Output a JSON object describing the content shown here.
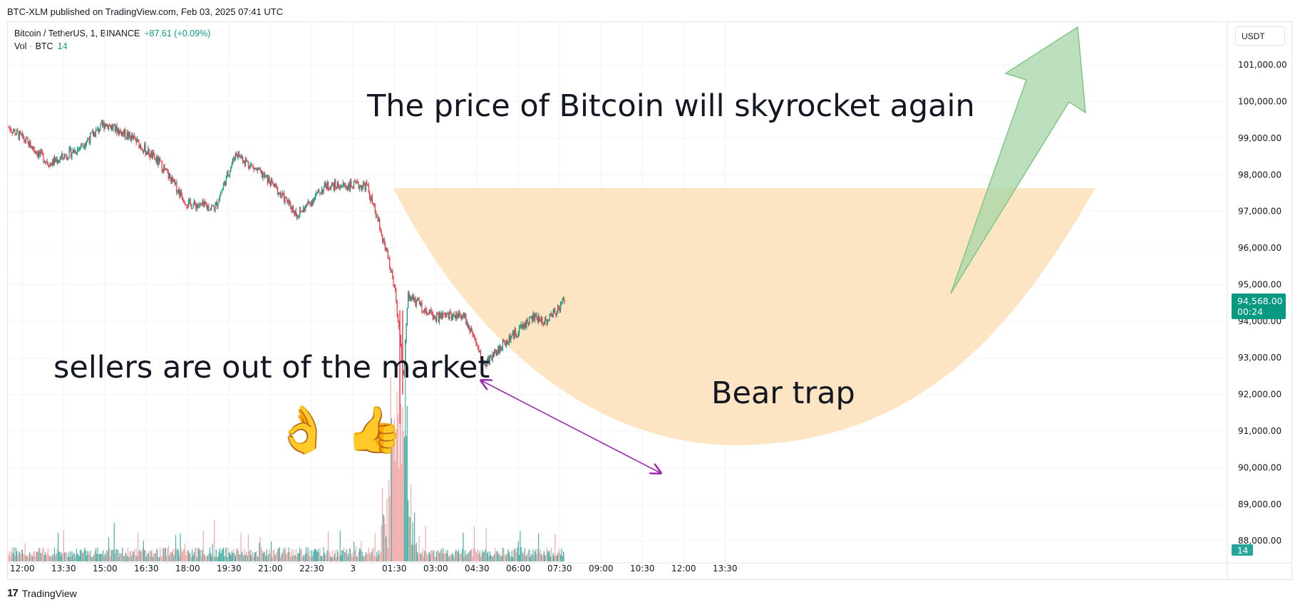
{
  "header": {
    "published": "BTC-XLM published on TradingView.com, Feb 03, 2025 07:41 UTC"
  },
  "legend": {
    "symbol": "Bitcoin / TetherUS, 1, BINANCE",
    "change": "+87.61 (+0.09%)",
    "vol_label": "Vol",
    "vol_currency": "BTC",
    "vol_value": "14"
  },
  "currency": "USDT",
  "footer": {
    "brand": "TradingView"
  },
  "colors": {
    "up": "#089981",
    "down": "#f23645",
    "bowl": "#fde0b8",
    "arrow_fill": "#a5d6a7",
    "double_arrow": "#9c27b0",
    "price_badge": "#089981"
  },
  "chart_data": {
    "type": "candlestick",
    "y_axis": {
      "ticks": [
        "101,000.00",
        "100,000.00",
        "99,000.00",
        "98,000.00",
        "97,000.00",
        "96,000.00",
        "95,000.00",
        "94,000.00",
        "93,000.00",
        "92,000.00",
        "91,000.00",
        "90,000.00",
        "89,000.00",
        "88,000.00"
      ],
      "range": [
        87400,
        101800
      ]
    },
    "x_axis": {
      "ticks": [
        "12:00",
        "13:30",
        "15:00",
        "16:30",
        "18:00",
        "19:30",
        "21:00",
        "22:30",
        "3",
        "01:30",
        "03:00",
        "04:30",
        "06:00",
        "07:30",
        "09:00",
        "10:30",
        "12:00",
        "13:30"
      ]
    },
    "price_series_keypoints": [
      {
        "t": "11:30",
        "price": 99300
      },
      {
        "t": "12:00",
        "price": 99000
      },
      {
        "t": "13:00",
        "price": 98300
      },
      {
        "t": "14:00",
        "price": 98700
      },
      {
        "t": "15:00",
        "price": 99400
      },
      {
        "t": "16:00",
        "price": 99000
      },
      {
        "t": "17:00",
        "price": 98300
      },
      {
        "t": "18:00",
        "price": 97200
      },
      {
        "t": "19:00",
        "price": 97100
      },
      {
        "t": "19:45",
        "price": 98600
      },
      {
        "t": "21:00",
        "price": 97800
      },
      {
        "t": "22:00",
        "price": 96900
      },
      {
        "t": "23:00",
        "price": 97700
      },
      {
        "t": "00:30",
        "price": 97700
      },
      {
        "t": "01:00",
        "price": 96500
      },
      {
        "t": "01:30",
        "price": 95000
      },
      {
        "t": "01:50",
        "price": 92500
      },
      {
        "t": "02:00",
        "price": 94700
      },
      {
        "t": "03:00",
        "price": 94100
      },
      {
        "t": "04:00",
        "price": 94200
      },
      {
        "t": "04:45",
        "price": 92800
      },
      {
        "t": "05:30",
        "price": 93400
      },
      {
        "t": "06:30",
        "price": 94100
      },
      {
        "t": "07:00",
        "price": 94000
      },
      {
        "t": "07:41",
        "price": 94568
      }
    ],
    "volume_note": "volume histogram bars along the bottom; spike near 01:45",
    "current_price": {
      "value": "94,568.00",
      "timer": "00:24"
    },
    "volume_badge": "14",
    "annotations": {
      "headline": "The price of Bitcoin will skyrocket again",
      "sellers": "sellers are out of the market",
      "bear_trap": "Bear trap",
      "emojis": "👌 👍"
    }
  }
}
